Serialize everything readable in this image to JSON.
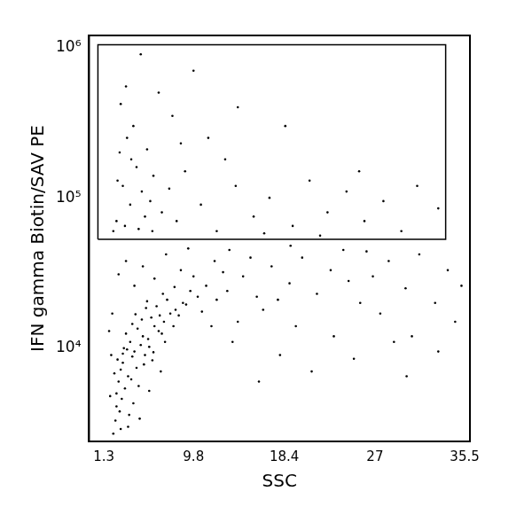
{
  "chart_data": {
    "type": "scatter",
    "x_label": "SSC",
    "y_label": "IFN gamma Biotin/SAV PE",
    "log": "y",
    "grid": false,
    "color": "#000000",
    "xlim": [
      -0.1,
      36
    ],
    "xticks": [
      1.3,
      9.8,
      18.4,
      27,
      35.5
    ],
    "ylim": [
      2400,
      1200000
    ],
    "yticks": [
      {
        "value": 10000,
        "label": "10⁴"
      },
      {
        "value": 100000,
        "label": "10⁵"
      },
      {
        "value": 1000000,
        "label": "10⁶"
      }
    ],
    "gate": {
      "x": [
        0.74,
        33.7
      ],
      "y": [
        53000,
        1040000
      ]
    },
    "x": [
      3.1,
      4.2,
      5.0,
      3.6,
      6.1,
      4.8,
      2.9,
      5.5,
      7.0,
      3.3,
      4.0,
      6.5,
      5.2,
      2.7,
      3.8,
      7.6,
      4.5,
      6.8,
      3.0,
      5.8,
      2.5,
      4.4,
      8.1,
      3.5,
      5.1,
      6.3,
      2.8,
      7.3,
      4.9,
      3.9,
      8.8,
      5.6,
      2.6,
      4.1,
      6.0,
      9.5,
      3.4,
      7.9,
      2.4,
      5.3,
      10.2,
      4.6,
      6.9,
      3.2,
      8.4,
      2.3,
      5.9,
      11.0,
      4.3,
      3.7,
      7.1,
      9.1,
      2.9,
      12.0,
      5.4,
      6.6,
      4.0,
      8.0,
      3.1,
      10.6,
      13.0,
      14.5,
      15.8,
      17.2,
      12.6,
      16.4,
      18.9,
      20.1,
      14.0,
      21.5,
      22.8,
      19.5,
      24.0,
      25.6,
      23.1,
      26.8,
      28.3,
      27.5,
      29.9,
      31.2,
      30.5,
      32.7,
      33.9,
      34.6,
      35.2,
      18.0,
      21.0,
      25.0,
      16.0,
      13.5,
      11.5,
      19.0,
      24.5,
      28.8,
      33.0,
      30.0,
      26.2,
      15.2,
      17.8,
      9.8,
      2.2,
      3.6,
      4.7,
      2.5,
      5.6,
      6.7,
      1.9,
      2.0,
      1.8,
      2.1,
      2.5,
      3.1,
      3.8,
      4.4,
      2.8,
      5.2,
      3.5,
      4.9,
      6.0,
      2.2,
      3.3,
      4.1,
      5.7,
      2.6,
      6.8,
      3.9,
      7.5,
      4.6,
      2.9,
      5.4,
      8.2,
      9.0,
      10.5,
      12.0,
      13.8,
      15.5,
      17.0,
      19.2,
      20.8,
      22.5,
      24.3,
      26.0,
      27.8,
      29.5,
      31.0,
      33.0,
      11.2,
      6.5,
      9.8,
      4.8,
      14.0,
      18.5,
      7.8,
      3.4,
      5.9,
      16.5,
      21.8,
      25.5,
      12.8,
      8.6,
      5.0,
      7.2,
      3.4,
      9.3,
      11.8,
      6.1,
      4.2,
      8.6,
      2.7,
      13.2
    ],
    "values": [
      8000,
      9500,
      12000,
      6500,
      14000,
      10500,
      7200,
      11500,
      15000,
      5400,
      8800,
      13000,
      9000,
      6000,
      11000,
      17000,
      13500,
      12500,
      4600,
      16000,
      5000,
      7400,
      18000,
      9800,
      7800,
      19000,
      3800,
      21000,
      15500,
      6200,
      20000,
      10200,
      8400,
      4300,
      9400,
      24000,
      12500,
      14000,
      3300,
      18500,
      22000,
      5600,
      23000,
      10000,
      16500,
      6800,
      8300,
      26000,
      16800,
      3600,
      11000,
      19500,
      2900,
      21000,
      20500,
      16500,
      14500,
      25500,
      9200,
      17500,
      24000,
      30000,
      22000,
      35000,
      32000,
      18000,
      27000,
      40000,
      15000,
      23000,
      33000,
      14000,
      45000,
      20000,
      12000,
      30000,
      38000,
      17000,
      25000,
      42000,
      12000,
      20000,
      33000,
      15000,
      26000,
      9000,
      7000,
      8500,
      6000,
      11000,
      14000,
      48000,
      28000,
      11000,
      9500,
      6500,
      44000,
      40000,
      21000,
      30000,
      2700,
      3000,
      3400,
      4100,
      5200,
      7000,
      4800,
      9000,
      13000,
      17000,
      70000,
      120000,
      90000,
      160000,
      200000,
      75000,
      250000,
      110000,
      140000,
      60000,
      65000,
      300000,
      95000,
      130000,
      80000,
      180000,
      115000,
      62000,
      420000,
      210000,
      70000,
      150000,
      90000,
      60000,
      120000,
      75000,
      100000,
      65000,
      130000,
      80000,
      110000,
      70000,
      95000,
      60000,
      120000,
      85000,
      250000,
      500000,
      700000,
      900000,
      400000,
      300000,
      350000,
      550000,
      60000,
      58000,
      56000,
      150000,
      180000,
      230000,
      35000,
      42000,
      38000,
      46000,
      38000,
      29000,
      26000,
      33000,
      31000,
      45000
    ]
  }
}
